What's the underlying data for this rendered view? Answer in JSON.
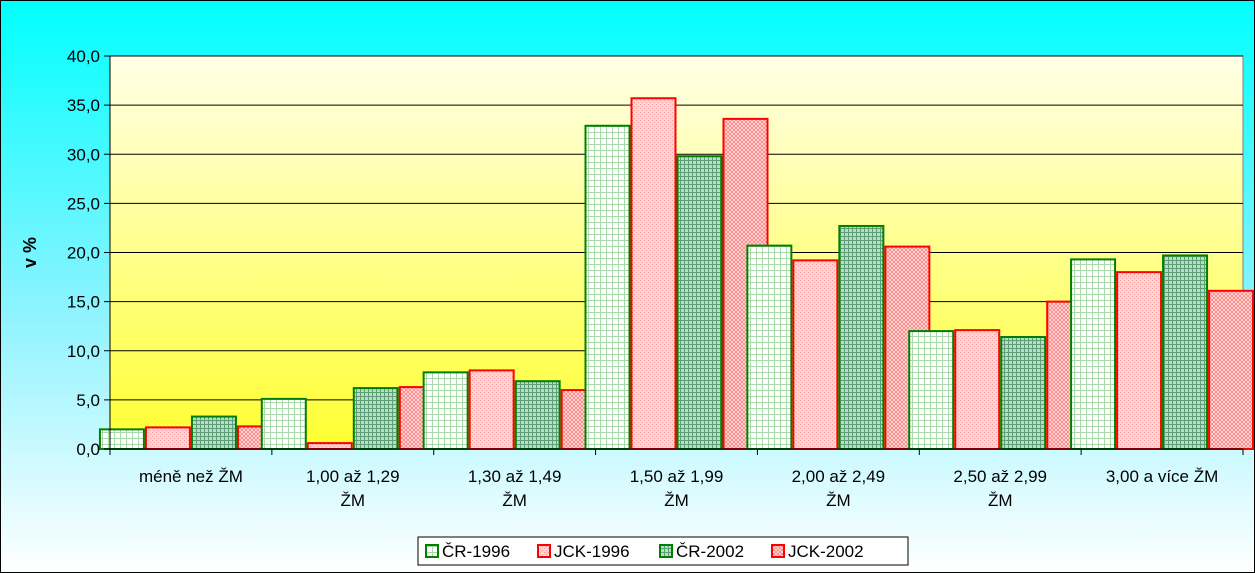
{
  "chart_data": {
    "type": "bar",
    "title": "",
    "xlabel": "",
    "ylabel": "v %",
    "ylim": [
      0,
      40
    ],
    "yticks": [
      "0,0",
      "5,0",
      "10,0",
      "15,0",
      "20,0",
      "25,0",
      "30,0",
      "35,0",
      "40,0"
    ],
    "categories": [
      [
        "méně než ŽM"
      ],
      [
        "1,00 až 1,29",
        "ŽM"
      ],
      [
        "1,30 až 1,49",
        "ŽM"
      ],
      [
        "1,50 až 1,99",
        "ŽM"
      ],
      [
        "2,00 až 2,49",
        "ŽM"
      ],
      [
        "2,50 až 2,99",
        "ŽM"
      ],
      [
        "3,00 a více ŽM"
      ]
    ],
    "series": [
      {
        "name": "ČR-1996",
        "values": [
          2.0,
          5.1,
          7.8,
          32.9,
          20.7,
          12.0,
          19.3
        ]
      },
      {
        "name": "JCK-1996",
        "values": [
          2.2,
          0.6,
          8.0,
          35.7,
          19.2,
          12.1,
          18.0
        ]
      },
      {
        "name": "ČR-2002",
        "values": [
          3.3,
          6.2,
          6.9,
          29.8,
          22.7,
          11.4,
          19.7
        ]
      },
      {
        "name": "JCK-2002",
        "values": [
          2.3,
          6.3,
          6.0,
          33.6,
          20.6,
          15.0,
          16.1
        ]
      }
    ],
    "grid": true,
    "legend": "bottom",
    "colors": {
      "series_borders": [
        "#008000",
        "#ff0000",
        "#008000",
        "#ff0000"
      ],
      "plot_background_top": "#ffffe6",
      "plot_background_bottom": "#ffff33",
      "chart_background_top": "#00ffff",
      "chart_background_bottom": "#ffffff"
    }
  }
}
